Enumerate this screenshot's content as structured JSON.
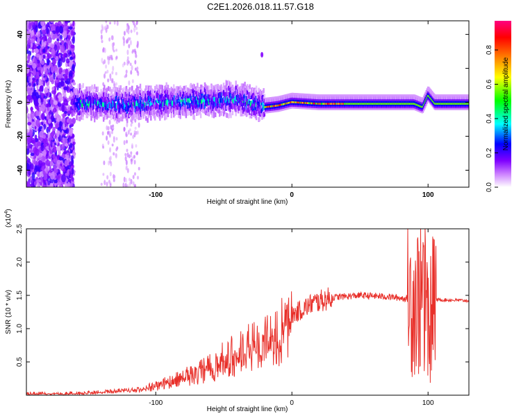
{
  "title": "C2E1.2026.018.11.57.G18",
  "chart_data": [
    {
      "type": "heatmap",
      "xlabel": "Height of straight line (km)",
      "ylabel": "Frequency (Hz)",
      "xlim": [
        -195,
        130
      ],
      "ylim": [
        -50,
        48
      ],
      "xticks": [
        -100,
        0,
        100
      ],
      "yticks": [
        -40,
        -20,
        0,
        20,
        40
      ],
      "colorbar": {
        "label": "Normalized spectral amplitude",
        "range": [
          0.0,
          0.97
        ],
        "ticks": [
          0.0,
          0.2,
          0.4,
          0.6,
          0.8
        ],
        "tick_labels": [
          "0.0",
          "0.2",
          "0.4",
          "0.6",
          "0.8"
        ],
        "colors": [
          "#ffffff",
          "#cc80ff",
          "#7f00ff",
          "#0000ff",
          "#00ffff",
          "#00ff00",
          "#ffff00",
          "#ff8000",
          "#ff0000",
          "#ff0080"
        ]
      },
      "signal_track": [
        {
          "x": -160,
          "y": 0
        },
        {
          "x": -120,
          "y": -1
        },
        {
          "x": -80,
          "y": 1
        },
        {
          "x": -40,
          "y": 2
        },
        {
          "x": -20,
          "y": -2
        },
        {
          "x": -10,
          "y": -1
        },
        {
          "x": 0,
          "y": 1
        },
        {
          "x": 20,
          "y": 0
        },
        {
          "x": 90,
          "y": 0
        },
        {
          "x": 96,
          "y": -2
        },
        {
          "x": 100,
          "y": 5
        },
        {
          "x": 105,
          "y": 0
        },
        {
          "x": 130,
          "y": 0
        }
      ]
    },
    {
      "type": "line",
      "xlabel": "Height of straight line (km)",
      "ylabel": "SNR (10 * v/v)",
      "scale_label": "(x10",
      "scale_exponent": "4",
      "xlim": [
        -195,
        130
      ],
      "ylim": [
        0,
        2.5
      ],
      "xticks": [
        -100,
        0,
        100
      ],
      "yticks": [
        0.5,
        1.0,
        1.5,
        2.0,
        2.5
      ],
      "ytick_labels": [
        "0.5",
        "1.0",
        "1.5",
        "2.0",
        "2.5"
      ],
      "color": "#e8302a",
      "envelope": [
        {
          "x": -195,
          "y": 0.02
        },
        {
          "x": -160,
          "y": 0.03
        },
        {
          "x": -130,
          "y": 0.06
        },
        {
          "x": -110,
          "y": 0.1
        },
        {
          "x": -90,
          "y": 0.22
        },
        {
          "x": -70,
          "y": 0.38
        },
        {
          "x": -50,
          "y": 0.6
        },
        {
          "x": -30,
          "y": 0.82
        },
        {
          "x": -15,
          "y": 1.0
        },
        {
          "x": 0,
          "y": 1.2
        },
        {
          "x": 15,
          "y": 1.38
        },
        {
          "x": 30,
          "y": 1.47
        },
        {
          "x": 50,
          "y": 1.5
        },
        {
          "x": 70,
          "y": 1.48
        },
        {
          "x": 85,
          "y": 1.45
        },
        {
          "x": 100,
          "y": 1.44
        },
        {
          "x": 130,
          "y": 1.42
        }
      ]
    }
  ]
}
